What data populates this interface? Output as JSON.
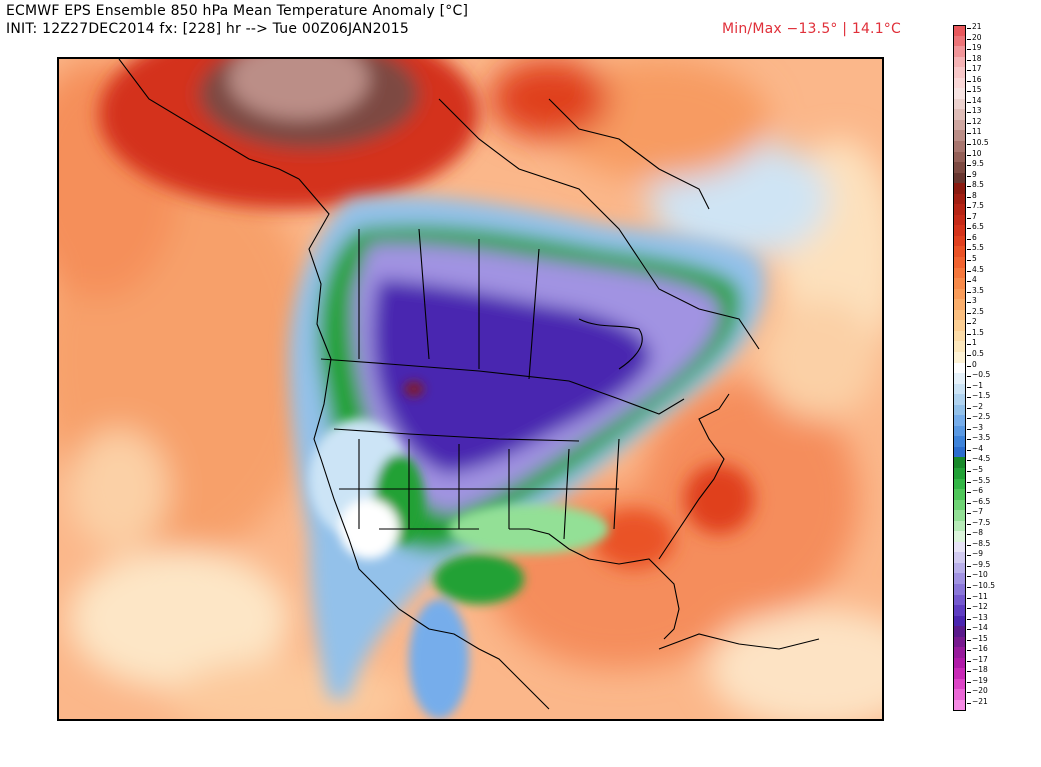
{
  "header": {
    "title": "ECMWF EPS Ensemble 850 hPa Mean Temperature Anomaly [°C]",
    "init": "INIT: 12Z27DEC2014 fx: [228] hr --> Tue 00Z06JAN2015",
    "minmax": "Min/Max −13.5° | 14.1°C"
  },
  "colorbar": {
    "labels": [
      "21",
      "20",
      "19",
      "18",
      "17",
      "16",
      "15",
      "14",
      "13",
      "12",
      "11",
      "10.5",
      "10",
      "9.5",
      "9",
      "8.5",
      "8",
      "7.5",
      "7",
      "6.5",
      "6",
      "5.5",
      "5",
      "4.5",
      "4",
      "3.5",
      "3",
      "2.5",
      "2",
      "1.5",
      "1",
      "0.5",
      "0",
      "−0.5",
      "−1",
      "−1.5",
      "−2",
      "−2.5",
      "−3",
      "−3.5",
      "−4",
      "−4.5",
      "−5",
      "−5.5",
      "−6",
      "−6.5",
      "−7",
      "−7.5",
      "−8",
      "−8.5",
      "−9",
      "−9.5",
      "−10",
      "−10.5",
      "−11",
      "−12",
      "−13",
      "−14",
      "−15",
      "−16",
      "−17",
      "−18",
      "−19",
      "−20",
      "−21"
    ],
    "colors": [
      "#e8585c",
      "#ec7478",
      "#f19599",
      "#f5b3b5",
      "#f8c8c9",
      "#fad8d8",
      "#f7e4e3",
      "#ecd2cf",
      "#dfbdb8",
      "#cfa7a1",
      "#bb8e87",
      "#a8766f",
      "#946058",
      "#7d4a42",
      "#673630",
      "#8a1a10",
      "#a11e12",
      "#b52415",
      "#c52a18",
      "#d4331b",
      "#e0401f",
      "#ea5226",
      "#f16330",
      "#f5773c",
      "#f78a4a",
      "#f99c5a",
      "#faae6c",
      "#fbbf80",
      "#fccf94",
      "#fcdca8",
      "#fde8bd",
      "#fef3d6",
      "#ffffff",
      "#e6f2fb",
      "#cce4f6",
      "#b0d3f0",
      "#93c1ea",
      "#76adeb",
      "#5a99e3",
      "#3e83da",
      "#2c6dce",
      "#18892a",
      "#22a136",
      "#33b646",
      "#4fc75a",
      "#6fd475",
      "#93e096",
      "#b7ebb8",
      "#dcf5dc",
      "#e8e4f7",
      "#d2cbf1",
      "#b9b0ea",
      "#a193e2",
      "#8a77d9",
      "#7459cf",
      "#5e3dc2",
      "#4a25b0",
      "#5a1a8c",
      "#771a8f",
      "#971b9c",
      "#b01ba8",
      "#c82ab6",
      "#dc45c6",
      "#ea68d6",
      "#f58be4"
    ]
  }
}
